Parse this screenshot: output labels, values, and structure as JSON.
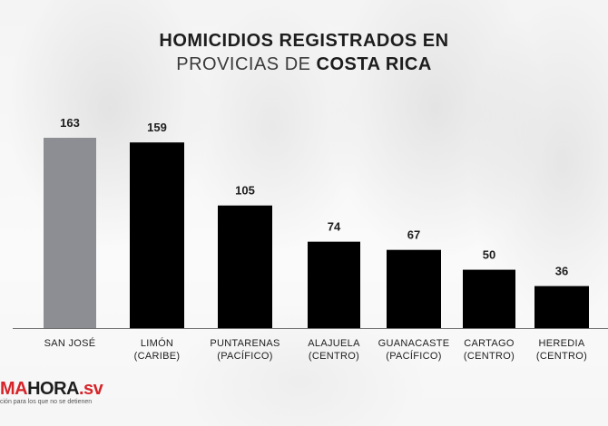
{
  "title": {
    "line1": "HOMICIDIOS REGISTRADOS EN",
    "line2_prefix": "PROVICIAS DE ",
    "line2_bold": "COSTA RICA"
  },
  "colors": {
    "highlight_bar": "#8c8e93",
    "bar": "#000000",
    "text": "#1d1d1d",
    "brand": "#d6252a"
  },
  "chart_data": {
    "type": "bar",
    "categories": [
      [
        "SAN JOSÉ"
      ],
      [
        "LIMÓN",
        "(CARIBE)"
      ],
      [
        "PUNTARENAS",
        "(PACÍFICO)"
      ],
      [
        "ALAJUELA",
        "(CENTRO)"
      ],
      [
        "GUANACASTE",
        "(PACÍFICO)"
      ],
      [
        "CARTAGO",
        "(CENTRO)"
      ],
      [
        "HEREDIA",
        "(CENTRO)"
      ]
    ],
    "values": [
      163,
      159,
      105,
      74,
      67,
      50,
      36
    ],
    "highlight_index": 0,
    "ylim": [
      0,
      163
    ],
    "grid": false,
    "legend": "none"
  },
  "logo": {
    "brand_red": "MA",
    "brand_dark": "HORA",
    "brand_suffix": ".sv",
    "tagline": "ción para los que no se detienen"
  }
}
